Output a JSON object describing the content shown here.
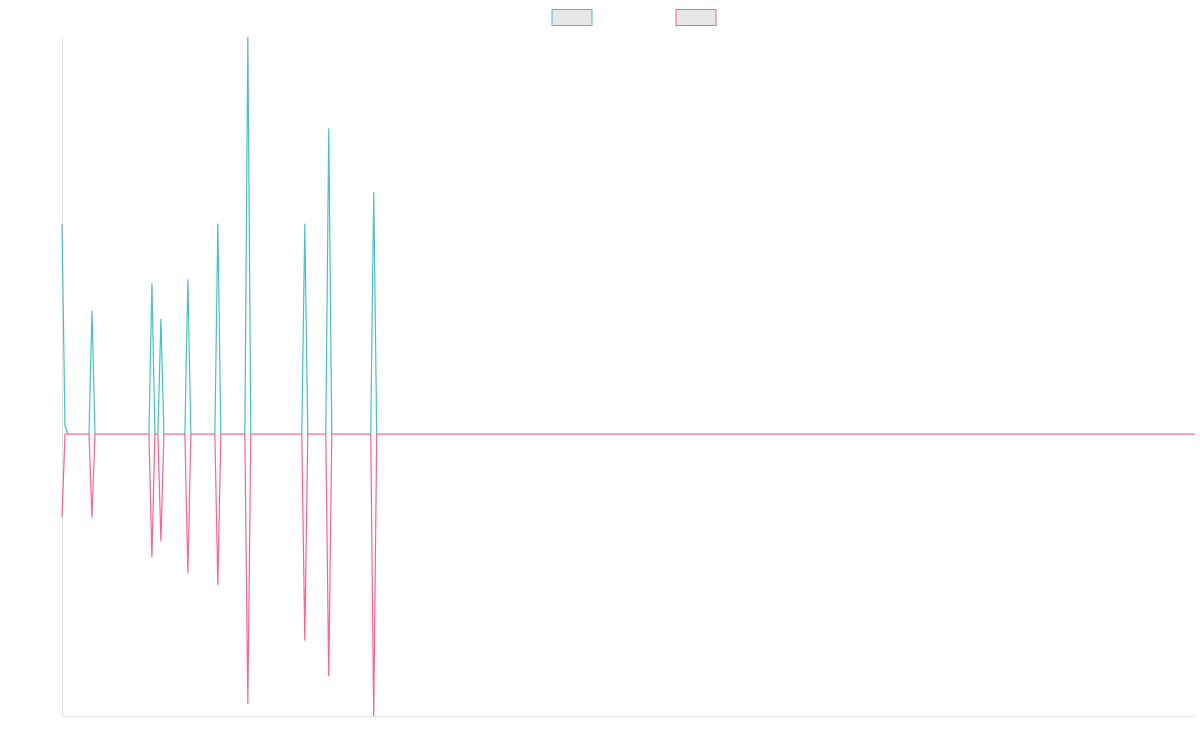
{
  "chart_data": {
    "type": "line",
    "x": [
      0,
      1,
      2,
      9,
      10,
      11,
      29,
      30,
      31,
      32,
      33,
      34,
      41,
      42,
      43,
      51,
      52,
      53,
      61,
      62,
      63,
      80,
      81,
      82,
      88,
      89,
      90,
      103,
      104,
      105,
      378
    ],
    "xlim": [
      0,
      378
    ],
    "ylim": [
      -0.71,
      1
    ],
    "grid": false,
    "legend": "top",
    "series": [
      {
        "color": "#4bc0c0",
        "values": [
          0.53,
          0.02,
          0,
          0,
          0.31,
          0,
          0,
          0.38,
          0,
          0,
          0.29,
          0,
          0,
          0.39,
          0,
          0,
          0.53,
          0,
          0,
          1,
          0,
          0,
          0.53,
          0,
          0,
          0.77,
          0,
          0,
          0.61,
          0,
          0
        ]
      },
      {
        "color": "#ff6384",
        "values": [
          -0.21,
          0,
          0,
          0,
          -0.21,
          0,
          0,
          -0.31,
          0,
          0,
          -0.27,
          0,
          0,
          -0.35,
          0,
          0,
          -0.38,
          0,
          0,
          -0.68,
          0,
          0,
          -0.52,
          0,
          0,
          -0.61,
          0,
          0,
          -0.71,
          0,
          0
        ]
      }
    ]
  }
}
